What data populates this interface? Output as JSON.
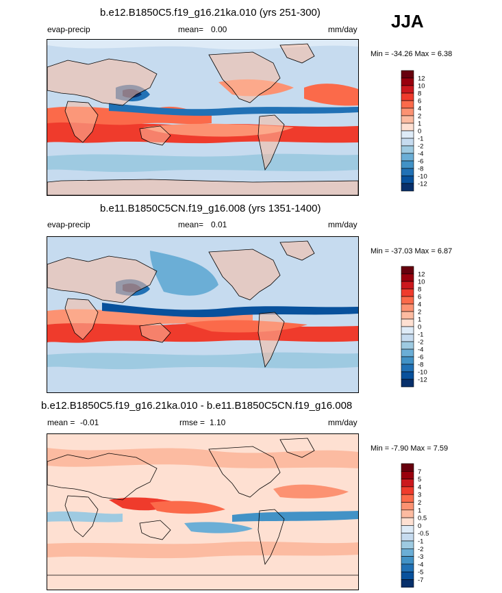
{
  "season": "JJA",
  "chart_data": [
    {
      "type": "heatmap",
      "title": "b.e12.B1850C5.f19_g16.21ka.010 (yrs 251-300)",
      "variable": "evap-precip",
      "stat_label": "mean=",
      "stat_value": "0.00",
      "units": "mm/day",
      "min_label": "Min = -34.26 Max =   6.38",
      "min": -34.26,
      "max": 6.38,
      "colorbar_levels": [
        "12",
        "10",
        "8",
        "6",
        "4",
        "2",
        "1",
        "0",
        "-1",
        "-2",
        "-4",
        "-6",
        "-8",
        "-10",
        "-12"
      ]
    },
    {
      "type": "heatmap",
      "title": "b.e11.B1850C5CN.f19_g16.008 (yrs 1351-1400)",
      "variable": "evap-precip",
      "stat_label": "mean=",
      "stat_value": "0.01",
      "units": "mm/day",
      "min_label": "Min = -37.03 Max =   6.87",
      "min": -37.03,
      "max": 6.87,
      "colorbar_levels": [
        "12",
        "10",
        "8",
        "6",
        "4",
        "2",
        "1",
        "0",
        "-1",
        "-2",
        "-4",
        "-6",
        "-8",
        "-10",
        "-12"
      ]
    },
    {
      "type": "heatmap",
      "title": "b.e12.B1850C5.f19_g16.21ka.010 - b.e11.B1850C5CN.f19_g16.008",
      "variable": "",
      "stat_label": "mean =",
      "stat_value": "-0.01",
      "stat2_label": "rmse =",
      "stat2_value": "1.10",
      "units": "mm/day",
      "min_label": "Min =  -7.90 Max =   7.59",
      "min": -7.9,
      "max": 7.59,
      "colorbar_levels": [
        "7",
        "5",
        "4",
        "3",
        "2",
        "1",
        "0.5",
        "0",
        "-0.5",
        "-1",
        "-2",
        "-3",
        "-4",
        "-5",
        "-7"
      ]
    }
  ],
  "colors": {
    "scale": [
      "#67000d",
      "#99000d",
      "#cb181d",
      "#ef3b2c",
      "#fb6a4a",
      "#fc9272",
      "#fcbba1",
      "#fee0d2",
      "#deebf7",
      "#c6dbef",
      "#9ecae1",
      "#6baed6",
      "#4292c6",
      "#2171b5",
      "#08519c",
      "#08306b"
    ],
    "land_line": "#000000",
    "background": "#ffffff"
  }
}
